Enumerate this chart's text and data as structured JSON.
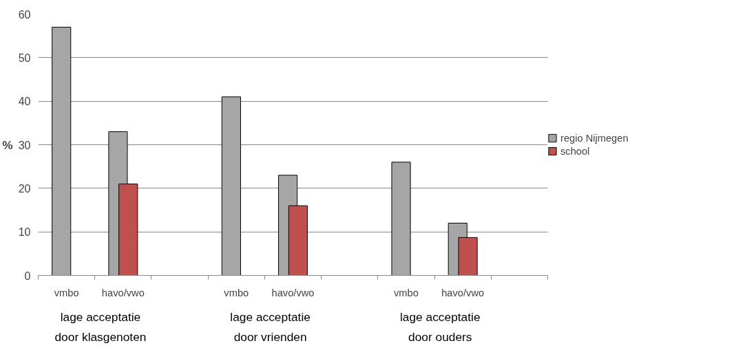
{
  "chart_data": {
    "type": "bar",
    "ylabel": "%",
    "categories": [
      "vmbo",
      "havo/vwo",
      null,
      "vmbo",
      "havo/vwo",
      null,
      "vmbo",
      "havo/vwo",
      null
    ],
    "series": [
      {
        "name": "regio Nijmegen",
        "color": "#a6a6a6",
        "values": [
          57,
          33,
          null,
          41,
          23,
          null,
          26,
          12,
          null
        ]
      },
      {
        "name": "school",
        "color": "#c0504d",
        "values": [
          null,
          21,
          null,
          null,
          16,
          null,
          null,
          8.7,
          null
        ]
      }
    ],
    "annotations": [
      "lage acceptatie\ndoor klasgenoten",
      "lage acceptatie\ndoor vrienden",
      "lage acceptatie\ndoor ouders"
    ],
    "ylim": [
      0,
      60
    ],
    "yticks": [
      0,
      10,
      20,
      30,
      40,
      50,
      60
    ],
    "grid": "y",
    "legend": "right"
  }
}
